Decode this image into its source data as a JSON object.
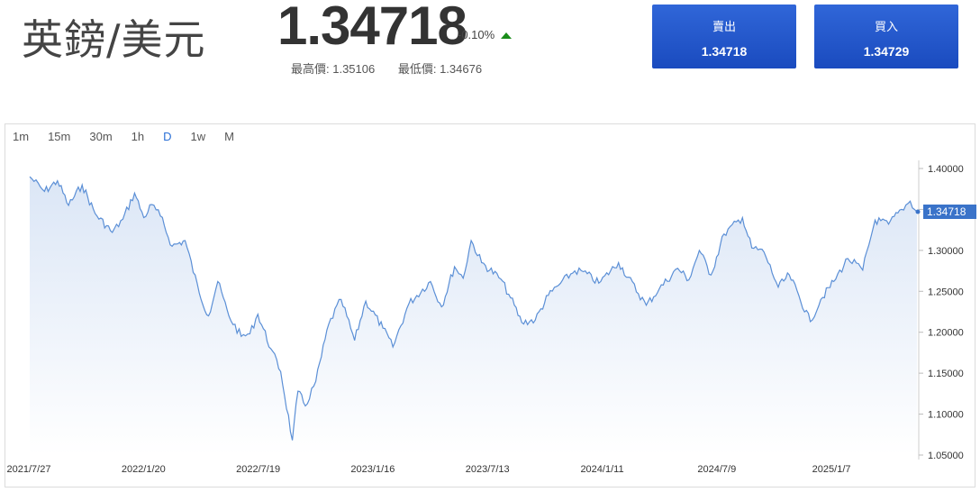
{
  "header": {
    "pair_title": "英鎊/美元",
    "price": "1.34718",
    "change": "-0.10%",
    "high_label": "最高價: 1.35106",
    "low_label": "最低價: 1.34676"
  },
  "trade": {
    "sell_label": "賣出",
    "sell_price": "1.34718",
    "buy_label": "買入",
    "buy_price": "1.34729"
  },
  "timeframes": [
    "1m",
    "15m",
    "30m",
    "1h",
    "D",
    "1w",
    "M"
  ],
  "active_timeframe": "D",
  "colors": {
    "accent": "#2a6fd6",
    "line": "#5b8fd6",
    "up": "#1a8c1a",
    "button": "#1f53c6"
  },
  "chart_data": {
    "type": "area",
    "x_labels": [
      "2021/7/27",
      "2022/1/20",
      "2022/7/19",
      "2023/1/16",
      "2023/7/13",
      "2024/1/11",
      "2024/7/9",
      "2025/1/7"
    ],
    "y_ticks": [
      "1.40000",
      "1.35000",
      "1.30000",
      "1.25000",
      "1.20000",
      "1.15000",
      "1.10000",
      "1.05000"
    ],
    "ylim": [
      1.05,
      1.4
    ],
    "current_value_label": "1.34718",
    "current_value": 1.34718,
    "x_range": [
      "2021-07-27",
      "2025-07-05"
    ],
    "series": [
      {
        "points": [
          [
            "2021-07-27",
            1.39
          ],
          [
            "2021-08-20",
            1.372
          ],
          [
            "2021-09-10",
            1.385
          ],
          [
            "2021-09-28",
            1.355
          ],
          [
            "2021-10-20",
            1.38
          ],
          [
            "2021-11-10",
            1.345
          ],
          [
            "2021-12-08",
            1.322
          ],
          [
            "2021-12-25",
            1.338
          ],
          [
            "2022-01-13",
            1.37
          ],
          [
            "2022-01-28",
            1.34
          ],
          [
            "2022-02-10",
            1.356
          ],
          [
            "2022-02-24",
            1.342
          ],
          [
            "2022-03-15",
            1.305
          ],
          [
            "2022-04-05",
            1.312
          ],
          [
            "2022-04-28",
            1.248
          ],
          [
            "2022-05-13",
            1.22
          ],
          [
            "2022-05-28",
            1.262
          ],
          [
            "2022-06-15",
            1.22
          ],
          [
            "2022-07-05",
            1.195
          ],
          [
            "2022-07-19",
            1.198
          ],
          [
            "2022-08-01",
            1.222
          ],
          [
            "2022-08-22",
            1.18
          ],
          [
            "2022-09-07",
            1.152
          ],
          [
            "2022-09-26",
            1.068
          ],
          [
            "2022-10-05",
            1.128
          ],
          [
            "2022-10-17",
            1.11
          ],
          [
            "2022-11-03",
            1.14
          ],
          [
            "2022-11-24",
            1.21
          ],
          [
            "2022-12-14",
            1.24
          ],
          [
            "2023-01-05",
            1.19
          ],
          [
            "2023-01-23",
            1.238
          ],
          [
            "2023-02-20",
            1.205
          ],
          [
            "2023-03-08",
            1.182
          ],
          [
            "2023-04-03",
            1.235
          ],
          [
            "2023-05-08",
            1.262
          ],
          [
            "2023-05-26",
            1.231
          ],
          [
            "2023-06-16",
            1.28
          ],
          [
            "2023-06-30",
            1.266
          ],
          [
            "2023-07-13",
            1.312
          ],
          [
            "2023-07-30",
            1.285
          ],
          [
            "2023-08-30",
            1.265
          ],
          [
            "2023-09-15",
            1.242
          ],
          [
            "2023-10-03",
            1.212
          ],
          [
            "2023-10-25",
            1.215
          ],
          [
            "2023-11-15",
            1.245
          ],
          [
            "2023-12-05",
            1.26
          ],
          [
            "2023-12-28",
            1.275
          ],
          [
            "2024-01-11",
            1.274
          ],
          [
            "2024-02-05",
            1.26
          ],
          [
            "2024-03-08",
            1.285
          ],
          [
            "2024-04-22",
            1.233
          ],
          [
            "2024-05-13",
            1.253
          ],
          [
            "2024-06-12",
            1.278
          ],
          [
            "2024-06-30",
            1.264
          ],
          [
            "2024-07-17",
            1.3
          ],
          [
            "2024-08-05",
            1.27
          ],
          [
            "2024-08-26",
            1.32
          ],
          [
            "2024-09-25",
            1.34
          ],
          [
            "2024-10-10",
            1.303
          ],
          [
            "2024-10-30",
            1.298
          ],
          [
            "2024-11-22",
            1.255
          ],
          [
            "2024-12-10",
            1.27
          ],
          [
            "2025-01-13",
            1.213
          ],
          [
            "2025-01-30",
            1.24
          ],
          [
            "2025-02-20",
            1.262
          ],
          [
            "2025-03-15",
            1.29
          ],
          [
            "2025-04-08",
            1.276
          ],
          [
            "2025-04-28",
            1.337
          ],
          [
            "2025-05-20",
            1.332
          ],
          [
            "2025-06-10",
            1.35
          ],
          [
            "2025-06-24",
            1.36
          ],
          [
            "2025-07-05",
            1.3472
          ]
        ]
      }
    ]
  }
}
